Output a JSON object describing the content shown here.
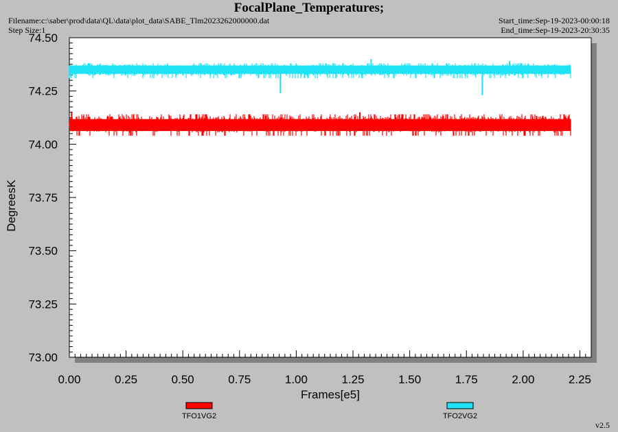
{
  "header": {
    "title": "FocalPlane_Temperatures;",
    "filename": "Filename:c:\\saber\\prod\\data\\QL\\data\\plot_data\\SABE_Tlm2023262000000.dat",
    "step_size": "Step Size:1",
    "start_time": "Start_time:Sep-19-2023-00:00:18",
    "end_time": "End_time:Sep-19-2023-20:30:35"
  },
  "version": "v2.5",
  "colors": {
    "background": "#c0c0c0",
    "plot_area": "#ffffff",
    "shadow": "#808080",
    "series_1": "#ff0000",
    "series_2": "#1ee3f7"
  },
  "chart_data": {
    "type": "line",
    "title": "FocalPlane_Temperatures;",
    "xlabel": "Frames[e5]",
    "ylabel": "DegreesK",
    "xlim": [
      0.0,
      2.3
    ],
    "ylim": [
      73.0,
      74.5
    ],
    "x_ticks": [
      "0.00",
      "0.25",
      "0.50",
      "0.75",
      "1.00",
      "1.25",
      "1.50",
      "1.75",
      "2.00",
      "2.25"
    ],
    "y_ticks": [
      "73.00",
      "73.25",
      "73.50",
      "73.75",
      "74.00",
      "74.25",
      "74.50"
    ],
    "grid": false,
    "legend_position": "bottom",
    "series": [
      {
        "name": "TFO1VG2",
        "color": "#ff0000",
        "x_range": [
          0.0,
          2.21
        ],
        "mean": 74.09,
        "noise_band": [
          74.04,
          74.14
        ],
        "spikes": [
          {
            "x": 1.28,
            "y": 74.15
          },
          {
            "x": 0.01,
            "y": 74.15
          }
        ]
      },
      {
        "name": "TFO2VG2",
        "color": "#1ee3f7",
        "x_range": [
          0.0,
          2.21
        ],
        "mean": 74.35,
        "noise_band": [
          74.31,
          74.38
        ],
        "spikes": [
          {
            "x": 0.93,
            "y": 74.24
          },
          {
            "x": 1.33,
            "y": 74.4
          },
          {
            "x": 1.82,
            "y": 74.23
          },
          {
            "x": 1.94,
            "y": 74.39
          }
        ]
      }
    ]
  }
}
